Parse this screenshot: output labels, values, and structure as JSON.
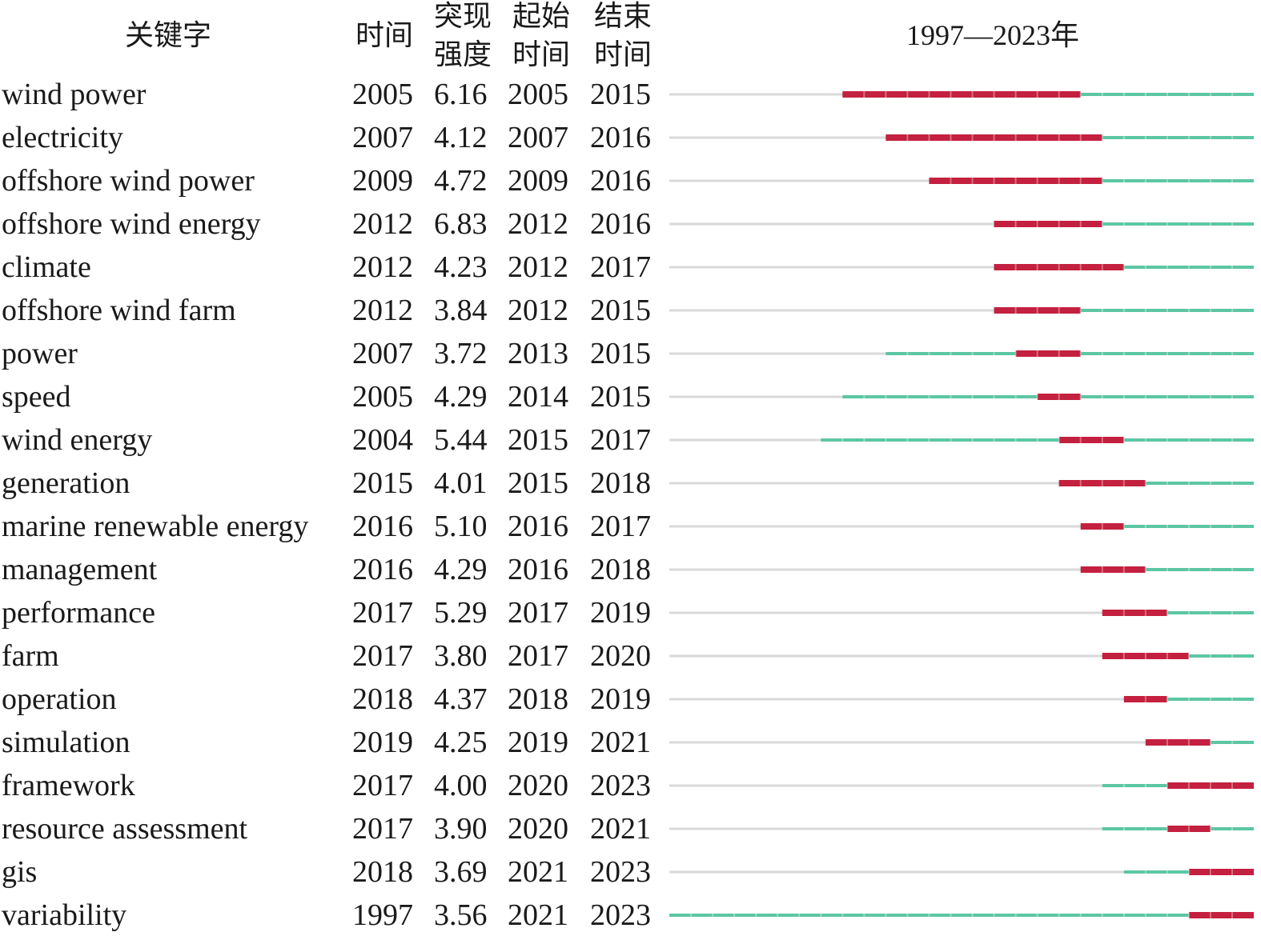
{
  "headers": {
    "keyword": "关键字",
    "year": "时间",
    "strength": [
      "突现",
      "强度"
    ],
    "start": [
      "起始",
      "时间"
    ],
    "end": [
      "结束",
      "时间"
    ],
    "range": "1997—2023年"
  },
  "colors": {
    "base": "#d9d9d9",
    "active": "#5cc6a4",
    "burst": "#c4203f"
  },
  "chart_data": {
    "type": "table",
    "range_start": 1997,
    "range_end": 2023,
    "rows": [
      {
        "keyword": "wind power",
        "year": "2005",
        "strength": "6.16",
        "begin": "2005",
        "end": "2015"
      },
      {
        "keyword": "electricity",
        "year": "2007",
        "strength": "4.12",
        "begin": "2007",
        "end": "2016"
      },
      {
        "keyword": "offshore wind power",
        "year": "2009",
        "strength": "4.72",
        "begin": "2009",
        "end": "2016"
      },
      {
        "keyword": "offshore wind energy",
        "year": "2012",
        "strength": "6.83",
        "begin": "2012",
        "end": "2016"
      },
      {
        "keyword": "climate",
        "year": "2012",
        "strength": "4.23",
        "begin": "2012",
        "end": "2017"
      },
      {
        "keyword": "offshore wind farm",
        "year": "2012",
        "strength": "3.84",
        "begin": "2012",
        "end": "2015"
      },
      {
        "keyword": "power",
        "year": "2007",
        "strength": "3.72",
        "begin": "2013",
        "end": "2015"
      },
      {
        "keyword": "speed",
        "year": "2005",
        "strength": "4.29",
        "begin": "2014",
        "end": "2015"
      },
      {
        "keyword": "wind energy",
        "year": "2004",
        "strength": "5.44",
        "begin": "2015",
        "end": "2017"
      },
      {
        "keyword": "generation",
        "year": "2015",
        "strength": "4.01",
        "begin": "2015",
        "end": "2018"
      },
      {
        "keyword": "marine renewable energy",
        "year": "2016",
        "strength": "5.10",
        "begin": "2016",
        "end": "2017"
      },
      {
        "keyword": "management",
        "year": "2016",
        "strength": "4.29",
        "begin": "2016",
        "end": "2018"
      },
      {
        "keyword": "performance",
        "year": "2017",
        "strength": "5.29",
        "begin": "2017",
        "end": "2019"
      },
      {
        "keyword": "farm",
        "year": "2017",
        "strength": "3.80",
        "begin": "2017",
        "end": "2020"
      },
      {
        "keyword": "operation",
        "year": "2018",
        "strength": "4.37",
        "begin": "2018",
        "end": "2019"
      },
      {
        "keyword": "simulation",
        "year": "2019",
        "strength": "4.25",
        "begin": "2019",
        "end": "2021"
      },
      {
        "keyword": "framework",
        "year": "2017",
        "strength": "4.00",
        "begin": "2020",
        "end": "2023"
      },
      {
        "keyword": "resource assessment",
        "year": "2017",
        "strength": "3.90",
        "begin": "2020",
        "end": "2021"
      },
      {
        "keyword": "gis",
        "year": "2018",
        "strength": "3.69",
        "begin": "2021",
        "end": "2023"
      },
      {
        "keyword": "variability",
        "year": "1997",
        "strength": "3.56",
        "begin": "2021",
        "end": "2023"
      }
    ]
  }
}
